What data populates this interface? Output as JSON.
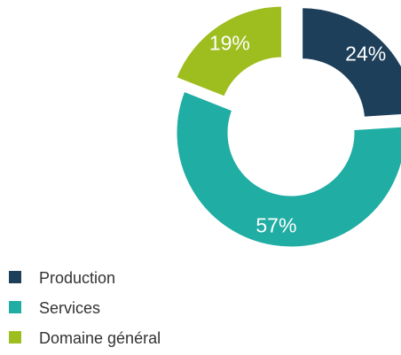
{
  "chart_data": {
    "type": "pie",
    "variant": "donut",
    "categories": [
      "Production",
      "Services",
      "Domaine général"
    ],
    "values": [
      24,
      57,
      19
    ],
    "labels": [
      "24%",
      "57%",
      "19%"
    ],
    "colors": [
      "#1e3f5a",
      "#20ada3",
      "#9ebd1f"
    ],
    "legend_position": "bottom-left",
    "title": ""
  }
}
